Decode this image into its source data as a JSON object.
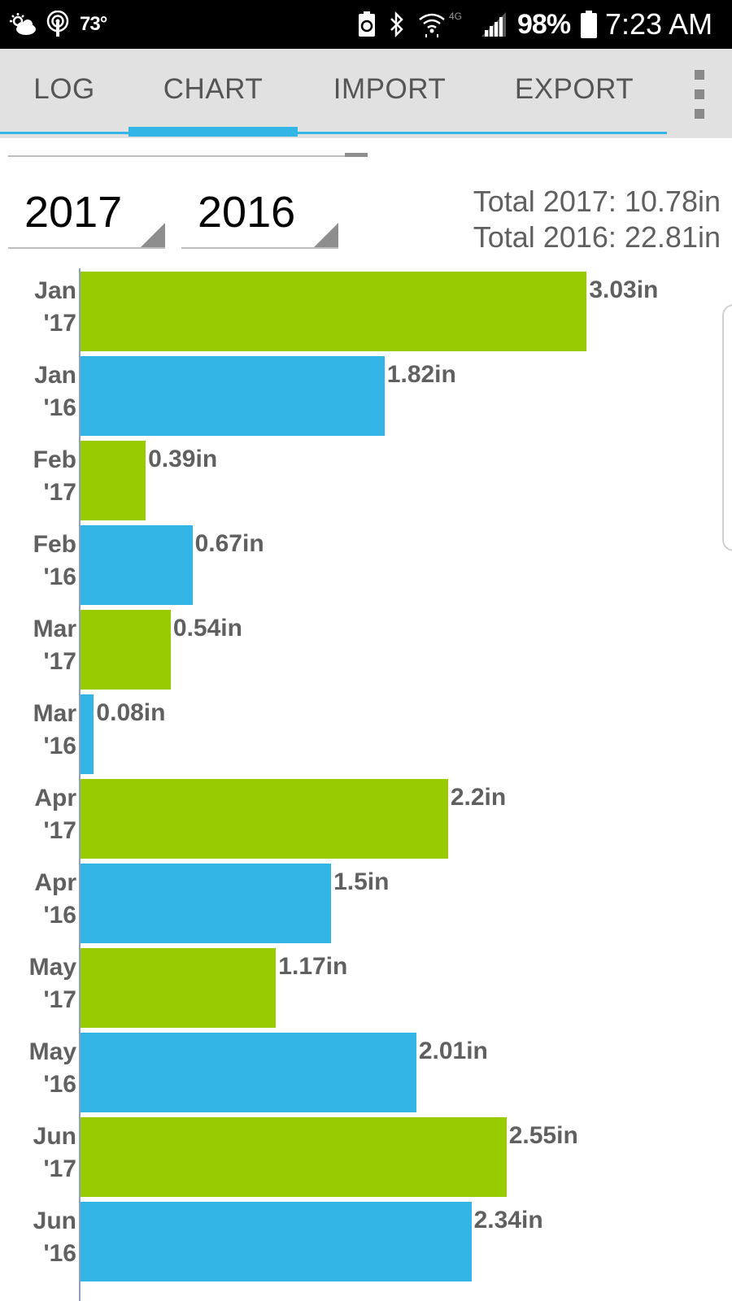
{
  "status_bar": {
    "temperature": "73°",
    "battery_percent": "98%",
    "time": "7:23 AM",
    "network": "4G",
    "icons": [
      "weather-cloud-sun-icon",
      "podcast-icon",
      "battery-saver-icon",
      "bluetooth-icon",
      "wifi-icon",
      "signal-icon",
      "battery-icon"
    ]
  },
  "tabs": [
    {
      "label": "LOG"
    },
    {
      "label": "CHART"
    },
    {
      "label": "IMPORT"
    },
    {
      "label": "EXPORT"
    }
  ],
  "active_tab": "CHART",
  "year_selectors": [
    {
      "value": "2017"
    },
    {
      "value": "2016"
    }
  ],
  "totals": {
    "line1": "Total 2017: 10.78in",
    "line2": "Total 2016: 22.81in"
  },
  "colors": {
    "series_2017": "#99cc00",
    "series_2016": "#33b5e5",
    "accent": "#33b5e5"
  },
  "chart_data": {
    "type": "bar",
    "orientation": "horizontal",
    "unit": "in",
    "xlim": [
      0,
      3.9
    ],
    "grid": false,
    "rows": [
      {
        "line1": "Jan",
        "line2": "'17",
        "series": "2017",
        "value": 3.03,
        "label": "3.03in"
      },
      {
        "line1": "Jan",
        "line2": "'16",
        "series": "2016",
        "value": 1.82,
        "label": "1.82in"
      },
      {
        "line1": "Feb",
        "line2": "'17",
        "series": "2017",
        "value": 0.39,
        "label": "0.39in"
      },
      {
        "line1": "Feb",
        "line2": "'16",
        "series": "2016",
        "value": 0.67,
        "label": "0.67in"
      },
      {
        "line1": "Mar",
        "line2": "'17",
        "series": "2017",
        "value": 0.54,
        "label": "0.54in"
      },
      {
        "line1": "Mar",
        "line2": "'16",
        "series": "2016",
        "value": 0.08,
        "label": "0.08in"
      },
      {
        "line1": "Apr",
        "line2": "'17",
        "series": "2017",
        "value": 2.2,
        "label": "2.2in"
      },
      {
        "line1": "Apr",
        "line2": "'16",
        "series": "2016",
        "value": 1.5,
        "label": "1.5in"
      },
      {
        "line1": "May",
        "line2": "'17",
        "series": "2017",
        "value": 1.17,
        "label": "1.17in"
      },
      {
        "line1": "May",
        "line2": "'16",
        "series": "2016",
        "value": 2.01,
        "label": "2.01in"
      },
      {
        "line1": "Jun",
        "line2": "'17",
        "series": "2017",
        "value": 2.55,
        "label": "2.55in"
      },
      {
        "line1": "Jun",
        "line2": "'16",
        "series": "2016",
        "value": 2.34,
        "label": "2.34in"
      }
    ]
  }
}
